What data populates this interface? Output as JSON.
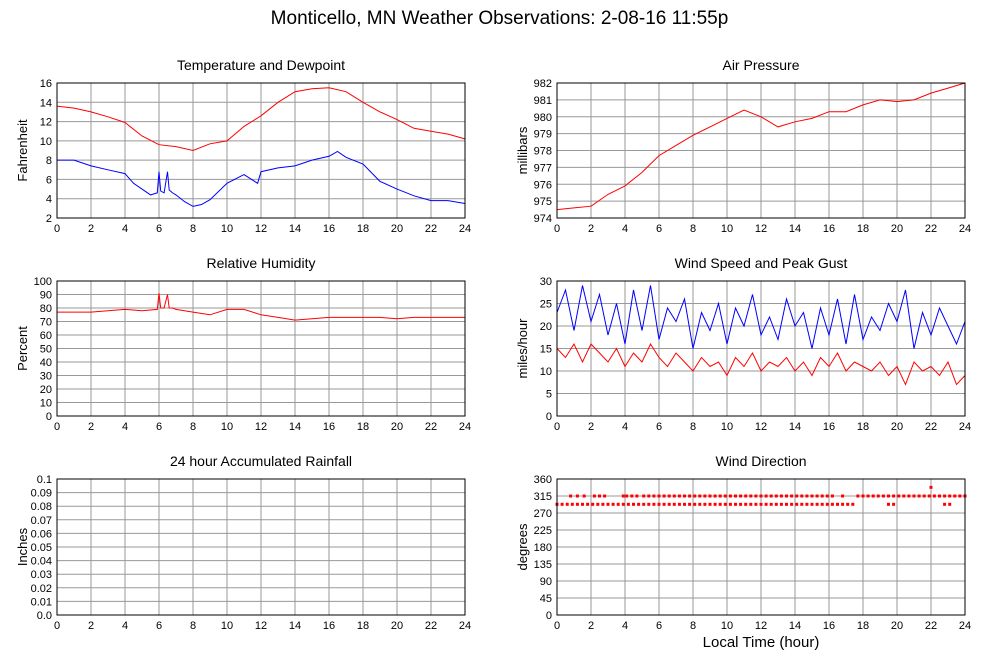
{
  "title": "Monticello, MN Weather Observations: 2-08-16 11:55p",
  "x_axis_label": "Local Time (hour)",
  "colors": {
    "red": "#ff0000",
    "blue": "#0000ff",
    "grid": "#999999",
    "frame": "#000000"
  },
  "chart_data": [
    {
      "type": "line",
      "title": "Temperature and Dewpoint",
      "ylabel": "Fahrenheit",
      "xlim": [
        0,
        24
      ],
      "ylim": [
        2,
        16
      ],
      "xticks": [
        "0",
        "2",
        "4",
        "6",
        "8",
        "10",
        "12",
        "14",
        "16",
        "18",
        "20",
        "22",
        "24"
      ],
      "yticks": [
        "2",
        "4",
        "6",
        "8",
        "10",
        "12",
        "14",
        "16"
      ],
      "series": [
        {
          "color": "#ff0000",
          "x": [
            0,
            1,
            2,
            3,
            4,
            5,
            6,
            7,
            8,
            9,
            10,
            11,
            12,
            13,
            14,
            15,
            16,
            17,
            18,
            19,
            20,
            21,
            22,
            23,
            24
          ],
          "values": [
            13.6,
            13.4,
            13.0,
            12.5,
            11.9,
            10.5,
            9.6,
            9.4,
            9.0,
            9.7,
            10.0,
            11.5,
            12.6,
            14.0,
            15.1,
            15.4,
            15.5,
            15.1,
            14.0,
            13.0,
            12.2,
            11.3,
            11.0,
            10.7,
            10.2
          ]
        },
        {
          "color": "#0000ff",
          "x": [
            0,
            1,
            2,
            3,
            4,
            4.5,
            5,
            5.5,
            5.9,
            6,
            6.1,
            6.3,
            6.5,
            6.6,
            6.8,
            7,
            7.5,
            8,
            8.5,
            9,
            10,
            11,
            11.8,
            12,
            13,
            14,
            15,
            16,
            16.5,
            17,
            18,
            19,
            20,
            21,
            22,
            23,
            24
          ],
          "values": [
            8.0,
            8.0,
            7.4,
            7.0,
            6.6,
            5.6,
            5.0,
            4.4,
            4.6,
            6.8,
            4.8,
            4.6,
            6.8,
            4.9,
            4.6,
            4.4,
            3.7,
            3.2,
            3.4,
            3.9,
            5.6,
            6.5,
            5.6,
            6.8,
            7.2,
            7.4,
            8.0,
            8.4,
            8.9,
            8.3,
            7.6,
            5.8,
            5.0,
            4.3,
            3.8,
            3.8,
            3.5
          ]
        }
      ]
    },
    {
      "type": "line",
      "title": "Air Pressure",
      "ylabel": "millibars",
      "xlim": [
        0,
        24
      ],
      "ylim": [
        974,
        982
      ],
      "xticks": [
        "0",
        "2",
        "4",
        "6",
        "8",
        "10",
        "12",
        "14",
        "16",
        "18",
        "20",
        "22",
        "24"
      ],
      "yticks": [
        "974",
        "975",
        "976",
        "977",
        "978",
        "979",
        "980",
        "981",
        "982"
      ],
      "series": [
        {
          "color": "#ff0000",
          "x": [
            0,
            1,
            2,
            3,
            4,
            5,
            6,
            7,
            8,
            9,
            10,
            11,
            12,
            13,
            14,
            15,
            16,
            17,
            18,
            19,
            20,
            21,
            22,
            23,
            24
          ],
          "values": [
            974.5,
            974.6,
            974.7,
            975.4,
            975.9,
            976.7,
            977.7,
            978.3,
            978.9,
            979.4,
            979.9,
            980.4,
            980.0,
            979.4,
            979.7,
            979.9,
            980.3,
            980.3,
            980.7,
            981.0,
            980.9,
            981.0,
            981.4,
            981.7,
            982.0
          ]
        }
      ]
    },
    {
      "type": "line",
      "title": "Relative Humidity",
      "ylabel": "Percent",
      "xlim": [
        0,
        24
      ],
      "ylim": [
        0,
        100
      ],
      "xticks": [
        "0",
        "2",
        "4",
        "6",
        "8",
        "10",
        "12",
        "14",
        "16",
        "18",
        "20",
        "22",
        "24"
      ],
      "yticks": [
        "0",
        "10",
        "20",
        "30",
        "40",
        "50",
        "60",
        "70",
        "80",
        "90",
        "100"
      ],
      "series": [
        {
          "color": "#ff0000",
          "x": [
            0,
            1,
            2,
            3,
            4,
            5,
            5.9,
            6,
            6.1,
            6.3,
            6.5,
            6.6,
            6.8,
            7,
            8,
            9,
            10,
            11,
            12,
            13,
            14,
            15,
            16,
            17,
            18,
            19,
            20,
            21,
            22,
            23,
            24
          ],
          "values": [
            77,
            77,
            77,
            78,
            79,
            78,
            79,
            91,
            80,
            80,
            90,
            80,
            80,
            79,
            77,
            75,
            79,
            79,
            75,
            73,
            71,
            72,
            73,
            73,
            73,
            73,
            72,
            73,
            73,
            73,
            73
          ]
        }
      ]
    },
    {
      "type": "line",
      "title": "Wind Speed and Peak Gust",
      "ylabel": "miles/hour",
      "xlim": [
        0,
        24
      ],
      "ylim": [
        0,
        30
      ],
      "xticks": [
        "0",
        "2",
        "4",
        "6",
        "8",
        "10",
        "12",
        "14",
        "16",
        "18",
        "20",
        "22",
        "24"
      ],
      "yticks": [
        "0",
        "5",
        "10",
        "15",
        "20",
        "25",
        "30"
      ],
      "series": [
        {
          "color": "#0000ff",
          "x": [
            0,
            0.5,
            1,
            1.5,
            2,
            2.5,
            3,
            3.5,
            4,
            4.5,
            5,
            5.5,
            6,
            6.5,
            7,
            7.5,
            8,
            8.5,
            9,
            9.5,
            10,
            10.5,
            11,
            11.5,
            12,
            12.5,
            13,
            13.5,
            14,
            14.5,
            15,
            15.5,
            16,
            16.5,
            17,
            17.5,
            18,
            18.5,
            19,
            19.5,
            20,
            20.5,
            21,
            21.5,
            22,
            22.5,
            23,
            23.5,
            24
          ],
          "values": [
            23,
            28,
            19,
            29,
            21,
            27,
            18,
            25,
            16,
            28,
            19,
            29,
            17,
            24,
            21,
            26,
            15,
            23,
            19,
            25,
            16,
            24,
            20,
            27,
            18,
            22,
            17,
            26,
            20,
            23,
            15,
            24,
            18,
            26,
            16,
            27,
            17,
            22,
            19,
            25,
            21,
            28,
            15,
            23,
            18,
            24,
            20,
            16,
            21
          ]
        },
        {
          "color": "#ff0000",
          "x": [
            0,
            0.5,
            1,
            1.5,
            2,
            2.5,
            3,
            3.5,
            4,
            4.5,
            5,
            5.5,
            6,
            6.5,
            7,
            7.5,
            8,
            8.5,
            9,
            9.5,
            10,
            10.5,
            11,
            11.5,
            12,
            12.5,
            13,
            13.5,
            14,
            14.5,
            15,
            15.5,
            16,
            16.5,
            17,
            17.5,
            18,
            18.5,
            19,
            19.5,
            20,
            20.5,
            21,
            21.5,
            22,
            22.5,
            23,
            23.5,
            24
          ],
          "values": [
            15,
            13,
            16,
            12,
            16,
            14,
            12,
            15,
            11,
            14,
            12,
            16,
            13,
            11,
            14,
            12,
            10,
            13,
            11,
            12,
            9,
            13,
            11,
            14,
            10,
            12,
            11,
            13,
            10,
            12,
            9,
            13,
            11,
            14,
            10,
            12,
            11,
            10,
            12,
            9,
            11,
            7,
            12,
            10,
            11,
            9,
            12,
            7,
            9
          ]
        }
      ]
    },
    {
      "type": "line",
      "title": "24 hour Accumulated Rainfall",
      "ylabel": "Inches",
      "xlim": [
        0,
        24
      ],
      "ylim": [
        0,
        0.1
      ],
      "xticks": [
        "0",
        "2",
        "4",
        "6",
        "8",
        "10",
        "12",
        "14",
        "16",
        "18",
        "20",
        "22",
        "24"
      ],
      "yticks": [
        "0.0",
        "0.01",
        "0.02",
        "0.03",
        "0.04",
        "0.05",
        "0.06",
        "0.07",
        "0.08",
        "0.09",
        "0.1"
      ],
      "series": [
        {
          "color": "#ff0000",
          "x": [
            0,
            24
          ],
          "values": [
            0,
            0
          ]
        }
      ]
    },
    {
      "type": "scatter",
      "title": "Wind Direction",
      "ylabel": "degrees",
      "xlim": [
        0,
        24
      ],
      "ylim": [
        0,
        360
      ],
      "xticks": [
        "0",
        "2",
        "4",
        "6",
        "8",
        "10",
        "12",
        "14",
        "16",
        "18",
        "20",
        "22",
        "24"
      ],
      "yticks": [
        "0",
        "45",
        "90",
        "135",
        "180",
        "225",
        "270",
        "315",
        "360"
      ],
      "series": [
        {
          "color": "#ff0000",
          "x": [
            0,
            0.3,
            0.6,
            0.9,
            1.2,
            1.5,
            1.8,
            2.1,
            2.4,
            2.7,
            3.0,
            3.3,
            3.6,
            3.9,
            4.2,
            4.5,
            4.8,
            5.1,
            5.4,
            5.7,
            6.0,
            6.3,
            6.6,
            6.9,
            7.2,
            7.5,
            7.8,
            8.1,
            8.4,
            8.7,
            9.0,
            9.3,
            9.6,
            9.9,
            10.2,
            10.5,
            10.8,
            11.1,
            11.4,
            11.7,
            12.0,
            12.3,
            12.6,
            12.9,
            13.2,
            13.5,
            13.8,
            14.1,
            14.4,
            14.7,
            15.0,
            15.3,
            15.6,
            15.9,
            16.2,
            16.5,
            16.8,
            17.1,
            17.4,
            19.5,
            19.8,
            22.8,
            23.1,
            0.8,
            1.2,
            1.6,
            2.2,
            2.5,
            2.8,
            3.9,
            4.1,
            4.4,
            4.7,
            5.1,
            5.4,
            5.7,
            6.0,
            6.3,
            6.6,
            6.9,
            7.2,
            7.5,
            7.8,
            8.1,
            8.4,
            8.7,
            9.0,
            9.3,
            9.6,
            9.9,
            10.2,
            10.5,
            10.8,
            11.1,
            11.4,
            11.7,
            12.0,
            12.3,
            12.6,
            12.9,
            13.2,
            13.5,
            13.8,
            14.1,
            14.4,
            14.7,
            15.0,
            15.3,
            15.6,
            15.9,
            16.2,
            16.8,
            17.7,
            18.0,
            18.3,
            18.6,
            18.9,
            19.2,
            19.5,
            19.8,
            20.1,
            20.4,
            20.7,
            21.0,
            21.3,
            21.6,
            21.9,
            22.2,
            22.5,
            22.8,
            23.1,
            23.4,
            23.7,
            24.0,
            22.0
          ],
          "values": [
            293,
            293,
            293,
            293,
            293,
            293,
            293,
            293,
            293,
            293,
            293,
            293,
            293,
            293,
            293,
            293,
            293,
            293,
            293,
            293,
            293,
            293,
            293,
            293,
            293,
            293,
            293,
            293,
            293,
            293,
            293,
            293,
            293,
            293,
            293,
            293,
            293,
            293,
            293,
            293,
            293,
            293,
            293,
            293,
            293,
            293,
            293,
            293,
            293,
            293,
            293,
            293,
            293,
            293,
            293,
            293,
            293,
            293,
            293,
            293,
            293,
            293,
            293,
            315,
            315,
            315,
            315,
            315,
            315,
            315,
            315,
            315,
            315,
            315,
            315,
            315,
            315,
            315,
            315,
            315,
            315,
            315,
            315,
            315,
            315,
            315,
            315,
            315,
            315,
            315,
            315,
            315,
            315,
            315,
            315,
            315,
            315,
            315,
            315,
            315,
            315,
            315,
            315,
            315,
            315,
            315,
            315,
            315,
            315,
            315,
            315,
            315,
            315,
            315,
            315,
            315,
            315,
            315,
            315,
            315,
            315,
            315,
            315,
            315,
            315,
            315,
            315,
            315,
            315,
            315,
            315,
            315,
            315,
            315,
            338
          ]
        }
      ]
    }
  ]
}
